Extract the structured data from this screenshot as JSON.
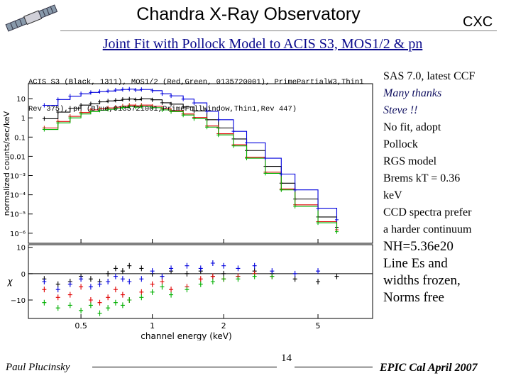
{
  "header": {
    "title": "Chandra X-Ray Observatory",
    "tag": "CXC",
    "subtitle": "Joint Fit with Pollock Model to ACIS S3, MOS1/2 & pn"
  },
  "plot_caption": [
    "ACIS S3 (Black, 1311), MOS1/2 (Red,Green, 0135720001), PrimePartialW3,Thin1",
    "Rev 375), pn (Blue,0135721001,PrimeFullWindow,Thin1,Rev 447)"
  ],
  "notes": [
    {
      "text": "SAS 7.0, latest CCF",
      "style": "normal"
    },
    {
      "text": "Many thanks",
      "style": "italic"
    },
    {
      "text": "Steve !!",
      "style": "italic"
    },
    {
      "text": "No fit, adopt",
      "style": "normal"
    },
    {
      "text": "Pollock",
      "style": "normal"
    },
    {
      "text": "RGS model",
      "style": "normal"
    },
    {
      "text": "Brems kT = 0.36",
      "style": "normal"
    },
    {
      "text": "keV",
      "style": "normal"
    },
    {
      "text": "CCD spectra prefer",
      "style": "normal"
    },
    {
      "text": "a harder continuum",
      "style": "normal"
    },
    {
      "text": "NH=5.36e20",
      "style": "big"
    },
    {
      "text": "Line Es and",
      "style": "big"
    },
    {
      "text": "widths frozen,",
      "style": "big"
    },
    {
      "text": "Norms free",
      "style": "big"
    }
  ],
  "footer": {
    "author": "Paul Plucinsky",
    "page": "14",
    "event": "EPIC Cal April 2007"
  },
  "chart_data": [
    {
      "type": "line",
      "panel": "spectrum",
      "xscale": "log",
      "yscale": "log",
      "xlim": [
        0.3,
        8.5
      ],
      "ylim": [
        3e-07,
        60
      ],
      "ylabel": "normalized counts/sec/keV",
      "yticks": [
        10,
        1,
        0.1,
        0.01,
        0.001,
        0.0001,
        1e-05,
        1e-06
      ],
      "yticklabels": [
        "10",
        "1",
        "0.1",
        "0.01",
        "10⁻³",
        "10⁻⁴",
        "10⁻⁵",
        "10⁻⁶"
      ],
      "colors": {
        "ACIS S3": "#000000",
        "MOS1": "#e00000",
        "MOS2": "#00b000",
        "pn": "#0000dd",
        "pn-light": "#6080ff"
      },
      "series": [
        {
          "name": "ACIS S3",
          "x": [
            0.35,
            0.4,
            0.45,
            0.5,
            0.55,
            0.6,
            0.65,
            0.7,
            0.75,
            0.8,
            0.85,
            0.9,
            1.0,
            1.1,
            1.2,
            1.35,
            1.5,
            1.7,
            1.9,
            2.2,
            2.5,
            3.0,
            3.5,
            4.0,
            5.0,
            6.0
          ],
          "y": [
            0.9,
            2.0,
            3.2,
            4.6,
            5.4,
            6.8,
            7.6,
            8.2,
            9.2,
            9.6,
            8.8,
            9.8,
            8.7,
            6.1,
            5.2,
            3.7,
            2.3,
            0.8,
            0.3,
            0.08,
            0.02,
            0.003,
            0.0004,
            6e-05,
            7e-06,
            2e-06
          ]
        },
        {
          "name": "MOS1",
          "x": [
            0.35,
            0.4,
            0.45,
            0.5,
            0.55,
            0.6,
            0.65,
            0.7,
            0.75,
            0.8,
            0.85,
            0.9,
            1.0,
            1.1,
            1.2,
            1.35,
            1.5,
            1.7,
            1.9,
            2.2,
            2.5,
            3.0,
            3.5,
            4.0,
            5.0,
            6.0
          ],
          "y": [
            0.3,
            0.65,
            1.2,
            1.9,
            2.6,
            3.0,
            3.3,
            3.6,
            4.1,
            4.6,
            4.2,
            4.6,
            4.0,
            3.0,
            2.4,
            1.6,
            1.05,
            0.38,
            0.15,
            0.04,
            0.009,
            0.0015,
            0.0002,
            3e-05,
            4e-06,
            1.5e-06
          ]
        },
        {
          "name": "MOS2",
          "x": [
            0.35,
            0.4,
            0.45,
            0.5,
            0.55,
            0.6,
            0.65,
            0.7,
            0.75,
            0.8,
            0.85,
            0.9,
            1.0,
            1.1,
            1.2,
            1.35,
            1.5,
            1.7,
            1.9,
            2.2,
            2.5,
            3.0,
            3.5,
            4.0,
            5.0,
            6.0
          ],
          "y": [
            0.25,
            0.55,
            1.0,
            1.6,
            2.1,
            2.5,
            2.8,
            3.1,
            3.5,
            3.9,
            3.6,
            3.9,
            3.4,
            2.6,
            2.1,
            1.4,
            0.9,
            0.33,
            0.13,
            0.035,
            0.008,
            0.0013,
            0.00018,
            2.5e-05,
            3.5e-06,
            1.2e-06
          ]
        },
        {
          "name": "pn",
          "x": [
            0.35,
            0.4,
            0.45,
            0.5,
            0.55,
            0.6,
            0.65,
            0.7,
            0.75,
            0.8,
            0.85,
            0.9,
            1.0,
            1.1,
            1.2,
            1.35,
            1.5,
            1.7,
            1.9,
            2.2,
            2.5,
            3.0,
            3.5,
            4.0,
            5.0,
            6.0
          ],
          "y": [
            4.5,
            9.0,
            13.5,
            18.0,
            21.0,
            23.5,
            25.0,
            28.0,
            30.0,
            31.5,
            28.0,
            30.0,
            26.0,
            18.0,
            14.0,
            9.5,
            6.0,
            2.2,
            0.8,
            0.2,
            0.05,
            0.008,
            0.0012,
            0.00018,
            2e-05,
            5e-06
          ]
        }
      ]
    },
    {
      "type": "scatter",
      "panel": "residuals",
      "xscale": "log",
      "xlim": [
        0.3,
        8.5
      ],
      "ylim": [
        -17,
        11
      ],
      "ylabel": "χ",
      "xlabel": "channel energy (keV)",
      "xticks": [
        0.5,
        1,
        2,
        5
      ],
      "xticklabels": [
        "0.5",
        "1",
        "2",
        "5"
      ],
      "yticks": [
        10,
        0,
        -10
      ],
      "yticklabels": [
        "10",
        "0",
        "−10"
      ],
      "series": [
        {
          "name": "ACIS S3",
          "x": [
            0.35,
            0.4,
            0.45,
            0.5,
            0.55,
            0.6,
            0.65,
            0.7,
            0.75,
            0.8,
            0.9,
            1.0,
            1.1,
            1.2,
            1.4,
            1.6,
            1.8,
            2.0,
            2.3,
            2.7,
            3.2,
            4.0,
            5.0,
            6.0
          ],
          "y": [
            -2,
            -4,
            -3,
            -1,
            -2,
            -3,
            0,
            2,
            1,
            3,
            2,
            0,
            -1,
            1,
            0,
            1,
            -1,
            0,
            -1,
            1,
            0,
            -2,
            -3,
            -1
          ]
        },
        {
          "name": "MOS1",
          "x": [
            0.35,
            0.4,
            0.45,
            0.5,
            0.55,
            0.6,
            0.65,
            0.7,
            0.75,
            0.8,
            0.9,
            1.0,
            1.1,
            1.2,
            1.4,
            1.6,
            1.8,
            2.0,
            2.3,
            2.7,
            3.2
          ],
          "y": [
            -6,
            -9,
            -8,
            -5,
            -10,
            -11,
            -9,
            -6,
            -8,
            -10,
            -7,
            -4,
            -3,
            -6,
            -5,
            -2,
            -1,
            -2,
            -1,
            0,
            -1
          ]
        },
        {
          "name": "MOS2",
          "x": [
            0.35,
            0.4,
            0.45,
            0.5,
            0.55,
            0.6,
            0.65,
            0.7,
            0.75,
            0.8,
            0.9,
            1.0,
            1.1,
            1.2,
            1.4,
            1.6,
            1.8,
            2.0,
            2.3,
            2.7,
            3.2
          ],
          "y": [
            -11,
            -13,
            -12,
            -14,
            -12,
            -15,
            -13,
            -11,
            -12,
            -10,
            -9,
            -7,
            -5,
            -8,
            -6,
            -4,
            -3,
            -2,
            -2,
            -1,
            -1
          ]
        },
        {
          "name": "pn",
          "x": [
            0.35,
            0.4,
            0.45,
            0.5,
            0.55,
            0.6,
            0.65,
            0.7,
            0.75,
            0.8,
            0.9,
            1.0,
            1.1,
            1.2,
            1.4,
            1.6,
            1.8,
            2.0,
            2.3,
            2.7,
            3.2,
            4.0,
            5.0
          ],
          "y": [
            -3,
            -6,
            -4,
            -2,
            -5,
            -4,
            -3,
            -1,
            -2,
            -3,
            -2,
            1,
            -1,
            2,
            3,
            2,
            4,
            3,
            2,
            3,
            1,
            0,
            1
          ]
        }
      ]
    }
  ]
}
